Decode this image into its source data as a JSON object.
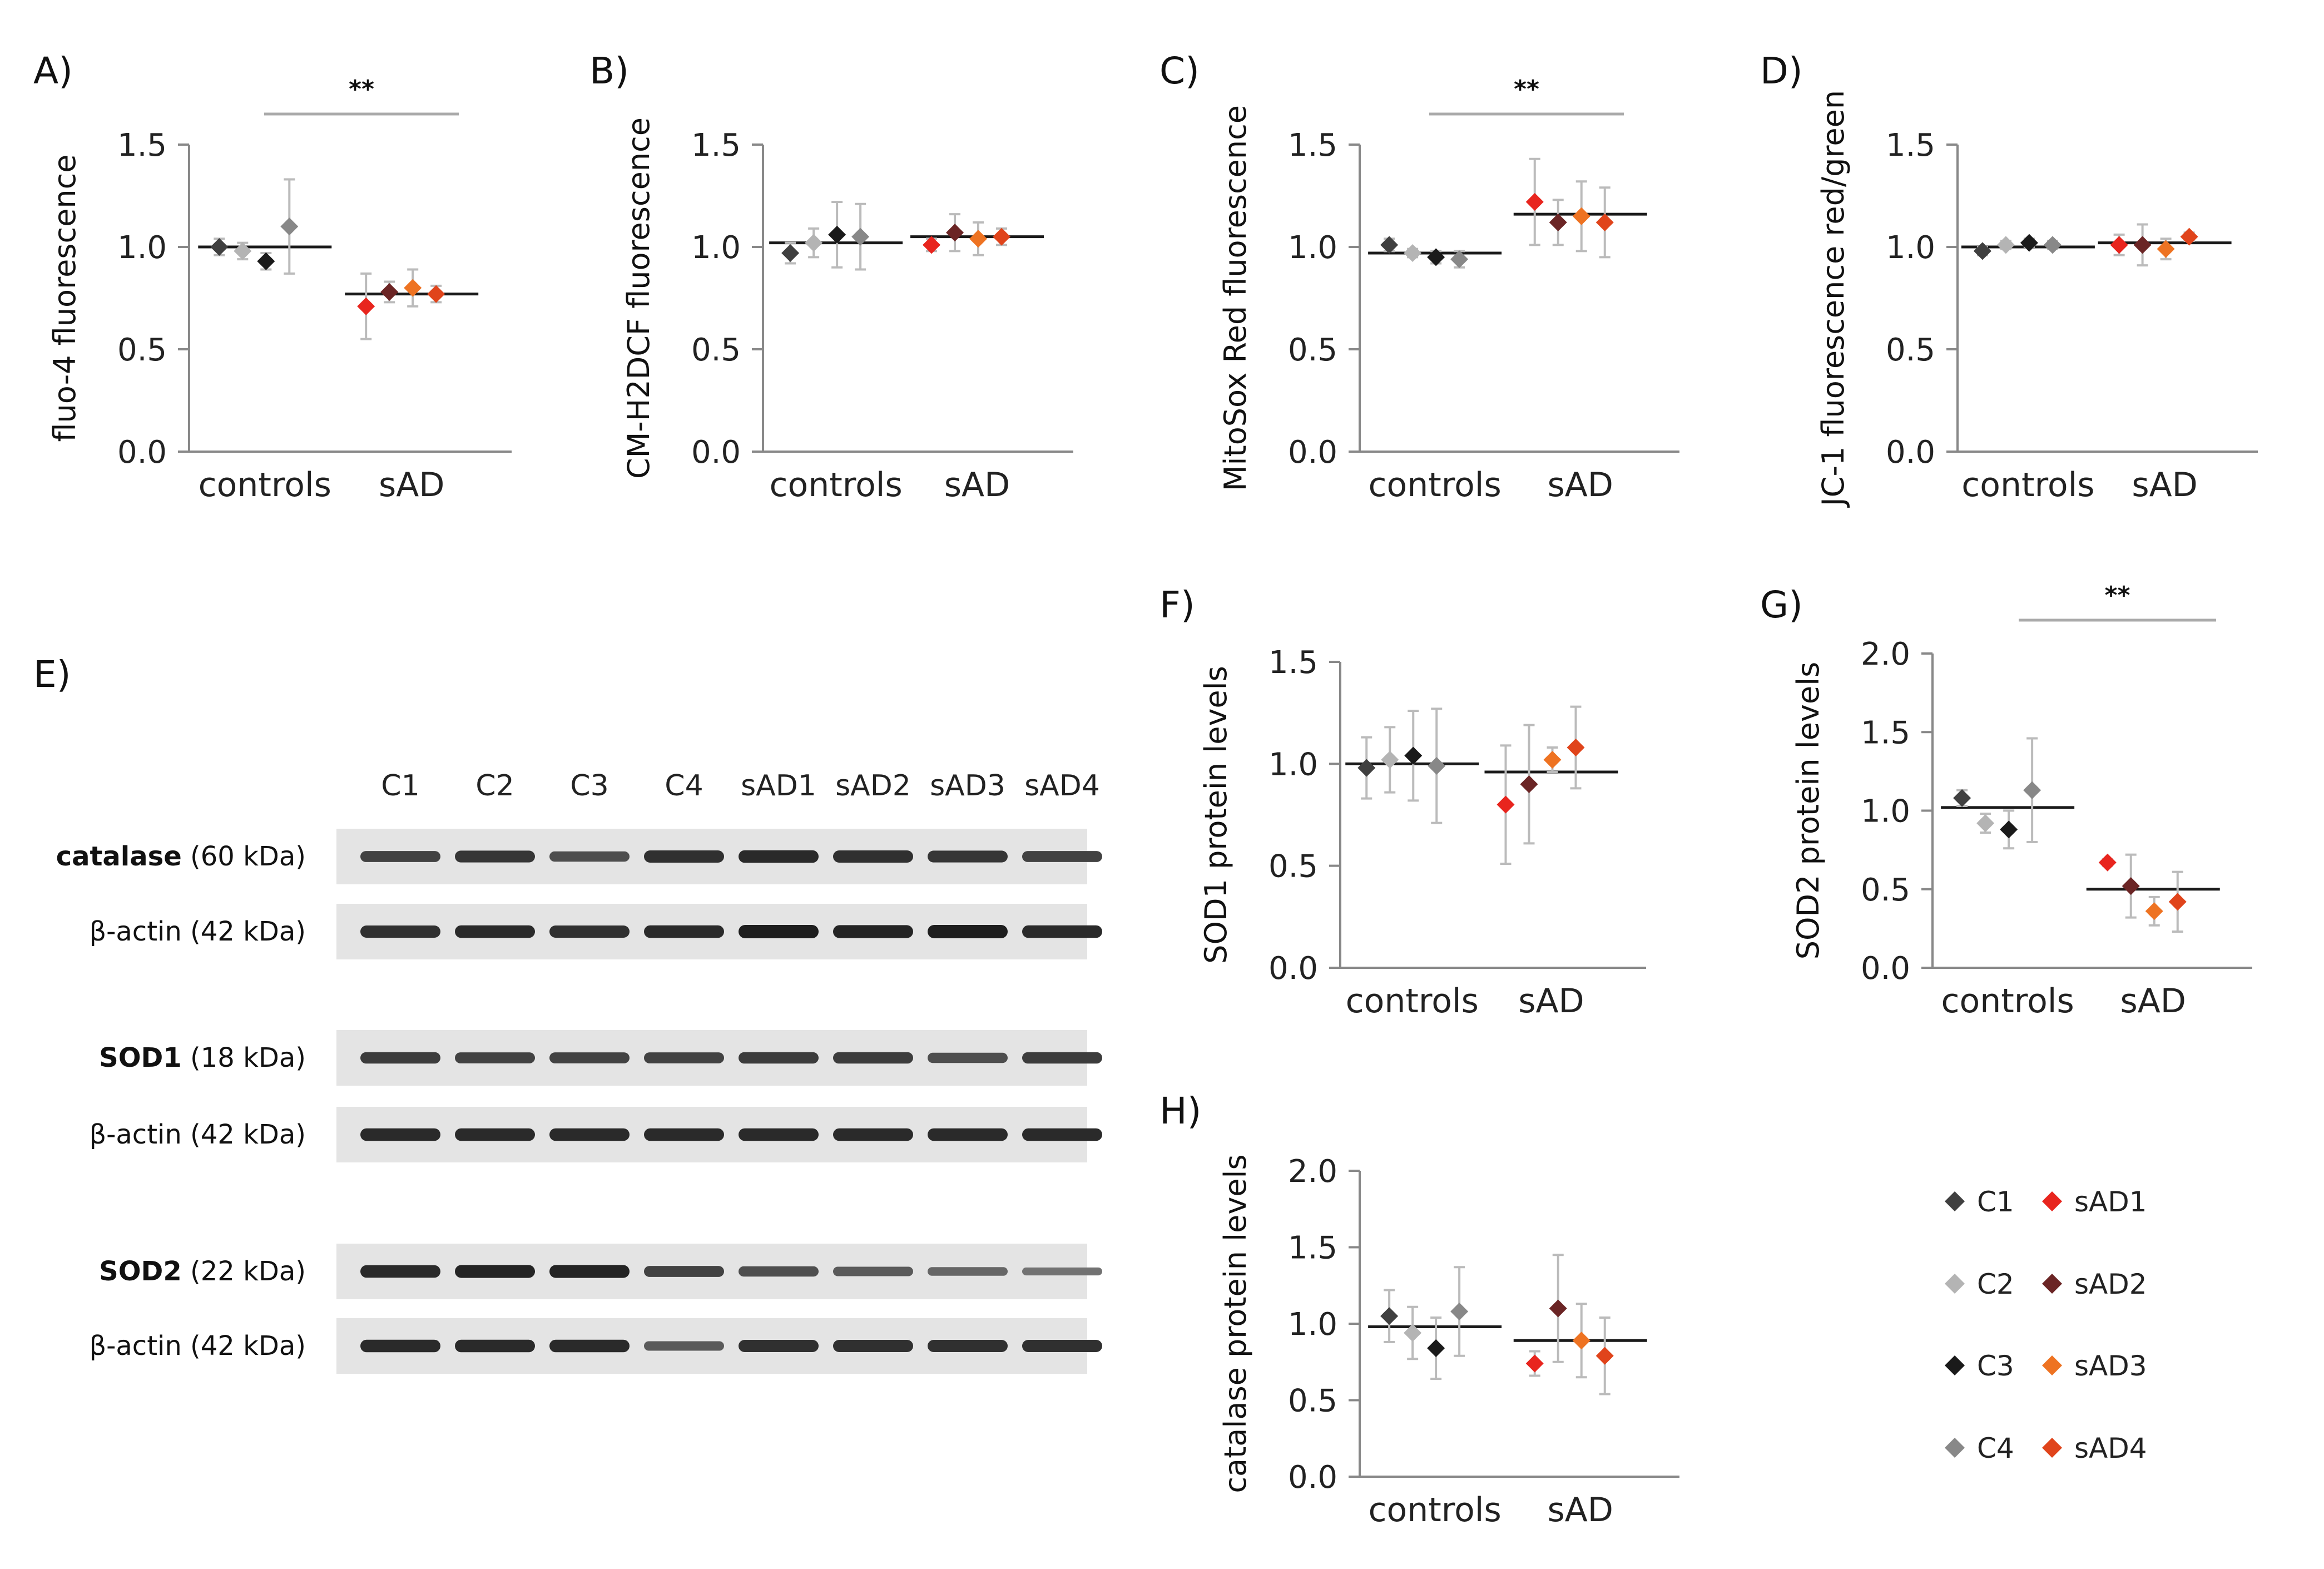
{
  "figure_title": "",
  "legend": {
    "entries": [
      {
        "label": "C1",
        "color": "#404040"
      },
      {
        "label": "C2",
        "color": "#b4b4b4"
      },
      {
        "label": "C3",
        "color": "#1a1a1a"
      },
      {
        "label": "C4",
        "color": "#888888"
      },
      {
        "label": "sAD1",
        "color": "#e8251e"
      },
      {
        "label": "sAD2",
        "color": "#6b2525"
      },
      {
        "label": "sAD3",
        "color": "#ee7322"
      },
      {
        "label": "sAD4",
        "color": "#e0441b"
      }
    ]
  },
  "blot": {
    "panel_label": "E)",
    "lanes": [
      "C1",
      "C2",
      "C3",
      "C4",
      "sAD1",
      "sAD2",
      "sAD3",
      "sAD4"
    ],
    "rows": [
      {
        "protein": "catalase",
        "size": "(60 kDa)",
        "bold": true,
        "intensity": [
          0.7,
          0.8,
          0.6,
          0.85,
          0.9,
          0.85,
          0.8,
          0.7
        ]
      },
      {
        "protein": "β-actin",
        "size": "(42 kDa)",
        "bold": false,
        "intensity": [
          0.85,
          0.9,
          0.85,
          0.9,
          1.0,
          0.95,
          1.0,
          0.9
        ]
      },
      {
        "protein": "SOD1",
        "size": "(18 kDa)",
        "bold": true,
        "intensity": [
          0.75,
          0.7,
          0.7,
          0.7,
          0.75,
          0.75,
          0.6,
          0.75
        ]
      },
      {
        "protein": "β-actin",
        "size": "(42 kDa)",
        "bold": false,
        "intensity": [
          0.9,
          0.9,
          0.9,
          0.9,
          0.9,
          0.9,
          0.9,
          0.9
        ]
      },
      {
        "protein": "SOD2",
        "size": "(22 kDa)",
        "bold": true,
        "intensity": [
          0.9,
          0.95,
          0.95,
          0.7,
          0.6,
          0.5,
          0.4,
          0.3
        ]
      },
      {
        "protein": "β-actin",
        "size": "(42 kDa)",
        "bold": false,
        "intensity": [
          0.9,
          0.9,
          0.9,
          0.5,
          0.85,
          0.85,
          0.85,
          0.85
        ]
      }
    ]
  },
  "chart_data": [
    {
      "panel": "A)",
      "type": "scatter",
      "ylabel": "fluo-4 fluorescence",
      "categories": [
        "controls",
        "sAD"
      ],
      "ylim": [
        0,
        1.5
      ],
      "yticks": [
        "0.0",
        "0.5",
        "1.0",
        "1.5"
      ],
      "significance": "**",
      "series": [
        {
          "name": "C1",
          "group": 0,
          "value": 1.0,
          "error": 0.04
        },
        {
          "name": "C2",
          "group": 0,
          "value": 0.98,
          "error": 0.04
        },
        {
          "name": "C3",
          "group": 0,
          "value": 0.93,
          "error": 0.04
        },
        {
          "name": "C4",
          "group": 0,
          "value": 1.1,
          "error": 0.23
        },
        {
          "name": "sAD1",
          "group": 1,
          "value": 0.71,
          "error": 0.16
        },
        {
          "name": "sAD2",
          "group": 1,
          "value": 0.78,
          "error": 0.05
        },
        {
          "name": "sAD3",
          "group": 1,
          "value": 0.8,
          "error": 0.09
        },
        {
          "name": "sAD4",
          "group": 1,
          "value": 0.77,
          "error": 0.04
        }
      ],
      "means": [
        1.0,
        0.77
      ]
    },
    {
      "panel": "B)",
      "type": "scatter",
      "ylabel": "CM-H2DCF fluorescence",
      "categories": [
        "controls",
        "sAD"
      ],
      "ylim": [
        0,
        1.5
      ],
      "yticks": [
        "0.0",
        "0.5",
        "1.0",
        "1.5"
      ],
      "significance": "",
      "series": [
        {
          "name": "C1",
          "group": 0,
          "value": 0.97,
          "error": 0.05
        },
        {
          "name": "C2",
          "group": 0,
          "value": 1.02,
          "error": 0.07
        },
        {
          "name": "C3",
          "group": 0,
          "value": 1.06,
          "error": 0.16
        },
        {
          "name": "C4",
          "group": 0,
          "value": 1.05,
          "error": 0.16
        },
        {
          "name": "sAD1",
          "group": 1,
          "value": 1.01,
          "error": 0.03
        },
        {
          "name": "sAD2",
          "group": 1,
          "value": 1.07,
          "error": 0.09
        },
        {
          "name": "sAD3",
          "group": 1,
          "value": 1.04,
          "error": 0.08
        },
        {
          "name": "sAD4",
          "group": 1,
          "value": 1.05,
          "error": 0.04
        }
      ],
      "means": [
        1.02,
        1.05
      ]
    },
    {
      "panel": "C)",
      "type": "scatter",
      "ylabel": "MitoSox Red fluorescence",
      "categories": [
        "controls",
        "sAD"
      ],
      "ylim": [
        0,
        1.5
      ],
      "yticks": [
        "0.0",
        "0.5",
        "1.0",
        "1.5"
      ],
      "significance": "**",
      "series": [
        {
          "name": "C1",
          "group": 0,
          "value": 1.01,
          "error": 0.03
        },
        {
          "name": "C2",
          "group": 0,
          "value": 0.97,
          "error": 0.02
        },
        {
          "name": "C3",
          "group": 0,
          "value": 0.95,
          "error": 0.03
        },
        {
          "name": "C4",
          "group": 0,
          "value": 0.94,
          "error": 0.04
        },
        {
          "name": "sAD1",
          "group": 1,
          "value": 1.22,
          "error": 0.21
        },
        {
          "name": "sAD2",
          "group": 1,
          "value": 1.12,
          "error": 0.11
        },
        {
          "name": "sAD3",
          "group": 1,
          "value": 1.15,
          "error": 0.17
        },
        {
          "name": "sAD4",
          "group": 1,
          "value": 1.12,
          "error": 0.17
        }
      ],
      "means": [
        0.97,
        1.16
      ]
    },
    {
      "panel": "D)",
      "type": "scatter",
      "ylabel": "JC-1 fluorescence red/green",
      "categories": [
        "controls",
        "sAD"
      ],
      "ylim": [
        0,
        1.5
      ],
      "yticks": [
        "0.0",
        "0.5",
        "1.0",
        "1.5"
      ],
      "significance": "",
      "series": [
        {
          "name": "C1",
          "group": 0,
          "value": 0.98,
          "error": 0.02
        },
        {
          "name": "C2",
          "group": 0,
          "value": 1.01,
          "error": 0.02
        },
        {
          "name": "C3",
          "group": 0,
          "value": 1.02,
          "error": 0.02
        },
        {
          "name": "C4",
          "group": 0,
          "value": 1.01,
          "error": 0.02
        },
        {
          "name": "sAD1",
          "group": 1,
          "value": 1.01,
          "error": 0.05
        },
        {
          "name": "sAD2",
          "group": 1,
          "value": 1.01,
          "error": 0.1
        },
        {
          "name": "sAD3",
          "group": 1,
          "value": 0.99,
          "error": 0.05
        },
        {
          "name": "sAD4",
          "group": 1,
          "value": 1.05,
          "error": 0.02
        }
      ],
      "means": [
        1.0,
        1.02
      ]
    },
    {
      "panel": "F)",
      "type": "scatter",
      "ylabel": "SOD1 protein levels",
      "categories": [
        "controls",
        "sAD"
      ],
      "ylim": [
        0,
        1.5
      ],
      "yticks": [
        "0.0",
        "0.5",
        "1.0",
        "1.5"
      ],
      "significance": "",
      "series": [
        {
          "name": "C1",
          "group": 0,
          "value": 0.98,
          "error": 0.15
        },
        {
          "name": "C2",
          "group": 0,
          "value": 1.02,
          "error": 0.16
        },
        {
          "name": "C3",
          "group": 0,
          "value": 1.04,
          "error": 0.22
        },
        {
          "name": "C4",
          "group": 0,
          "value": 0.99,
          "error": 0.28
        },
        {
          "name": "sAD1",
          "group": 1,
          "value": 0.8,
          "error": 0.29
        },
        {
          "name": "sAD2",
          "group": 1,
          "value": 0.9,
          "error": 0.29
        },
        {
          "name": "sAD3",
          "group": 1,
          "value": 1.02,
          "error": 0.06
        },
        {
          "name": "sAD4",
          "group": 1,
          "value": 1.08,
          "error": 0.2
        }
      ],
      "means": [
        1.0,
        0.96
      ]
    },
    {
      "panel": "G)",
      "type": "scatter",
      "ylabel": "SOD2 protein levels",
      "categories": [
        "controls",
        "sAD"
      ],
      "ylim": [
        0,
        2
      ],
      "yticks": [
        "0.0",
        "0.5",
        "1.0",
        "1.5",
        "2.0"
      ],
      "significance": "**",
      "series": [
        {
          "name": "C1",
          "group": 0,
          "value": 1.08,
          "error": 0.05
        },
        {
          "name": "C2",
          "group": 0,
          "value": 0.92,
          "error": 0.06
        },
        {
          "name": "C3",
          "group": 0,
          "value": 0.88,
          "error": 0.12
        },
        {
          "name": "C4",
          "group": 0,
          "value": 1.13,
          "error": 0.33
        },
        {
          "name": "sAD1",
          "group": 1,
          "value": 0.67,
          "error": 0.02
        },
        {
          "name": "sAD2",
          "group": 1,
          "value": 0.52,
          "error": 0.2
        },
        {
          "name": "sAD3",
          "group": 1,
          "value": 0.36,
          "error": 0.09
        },
        {
          "name": "sAD4",
          "group": 1,
          "value": 0.42,
          "error": 0.19
        }
      ],
      "means": [
        1.02,
        0.5
      ]
    },
    {
      "panel": "H)",
      "type": "scatter",
      "ylabel": "catalase protein levels",
      "categories": [
        "controls",
        "sAD"
      ],
      "ylim": [
        0,
        2
      ],
      "yticks": [
        "0.0",
        "0.5",
        "1.0",
        "1.5",
        "2.0"
      ],
      "significance": "",
      "series": [
        {
          "name": "C1",
          "group": 0,
          "value": 1.05,
          "error": 0.17
        },
        {
          "name": "C2",
          "group": 0,
          "value": 0.94,
          "error": 0.17
        },
        {
          "name": "C3",
          "group": 0,
          "value": 0.84,
          "error": 0.2
        },
        {
          "name": "C4",
          "group": 0,
          "value": 1.08,
          "error": 0.29
        },
        {
          "name": "sAD1",
          "group": 1,
          "value": 0.74,
          "error": 0.08
        },
        {
          "name": "sAD2",
          "group": 1,
          "value": 1.1,
          "error": 0.35
        },
        {
          "name": "sAD3",
          "group": 1,
          "value": 0.89,
          "error": 0.24
        },
        {
          "name": "sAD4",
          "group": 1,
          "value": 0.79,
          "error": 0.25
        }
      ],
      "means": [
        0.98,
        0.89
      ]
    }
  ]
}
